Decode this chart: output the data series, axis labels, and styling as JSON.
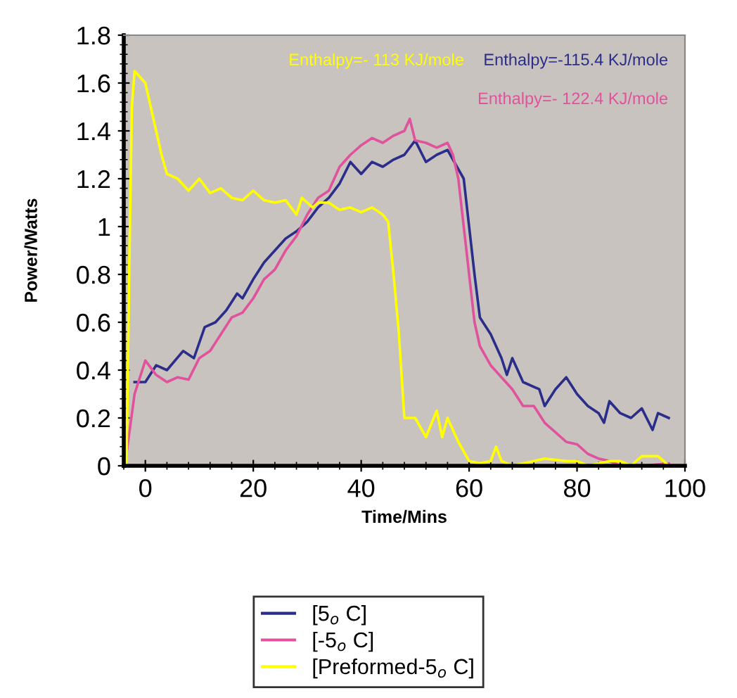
{
  "chart_data": {
    "type": "line",
    "xlabel": "Time/Mins",
    "ylabel": "Power/Watts",
    "xlim": [
      -4,
      100
    ],
    "xticks": [
      0,
      20,
      40,
      60,
      80,
      100
    ],
    "ylim": [
      0,
      1.8
    ],
    "yticks": [
      0,
      0.2,
      0.4,
      0.6,
      0.8,
      {
        "value": 1.0,
        "label": "1"
      },
      1.2,
      1.4,
      1.6,
      1.8
    ],
    "grid": false,
    "legend": "bottom",
    "marker": "none",
    "line_style": "solid",
    "annotations": [
      "Enthalpy=-115.4 KJ/mole",
      "Enthalpy=- 122.4 KJ/mole",
      "Enthalpy=- 113 KJ/mole"
    ],
    "series": [
      {
        "name": "[5$_{o}$ C]",
        "color": "#2b2d8a",
        "x": [
          -2,
          0,
          2,
          4,
          7,
          9,
          11,
          13,
          15,
          17,
          18,
          20,
          22,
          24,
          26,
          28,
          30,
          32,
          34,
          36,
          38,
          40,
          42,
          44,
          46,
          48,
          50,
          52,
          54,
          56,
          57,
          59,
          60,
          61,
          62,
          64,
          66,
          67,
          68,
          70,
          73,
          74,
          76,
          78,
          80,
          82,
          84,
          85,
          86,
          88,
          90,
          92,
          94,
          95,
          97
        ],
        "values": [
          0.35,
          0.35,
          0.42,
          0.4,
          0.48,
          0.45,
          0.58,
          0.6,
          0.65,
          0.72,
          0.7,
          0.78,
          0.85,
          0.9,
          0.95,
          0.98,
          1.02,
          1.08,
          1.12,
          1.18,
          1.27,
          1.22,
          1.27,
          1.25,
          1.28,
          1.3,
          1.36,
          1.27,
          1.3,
          1.32,
          1.28,
          1.2,
          1.0,
          0.8,
          0.62,
          0.55,
          0.45,
          0.38,
          0.45,
          0.35,
          0.32,
          0.25,
          0.32,
          0.37,
          0.3,
          0.25,
          0.22,
          0.18,
          0.27,
          0.22,
          0.2,
          0.24,
          0.15,
          0.22,
          0.2
        ]
      },
      {
        "name": "[-5$_{o}$ C]",
        "color": "#e0529c",
        "x": [
          -3.5,
          -2,
          0,
          2,
          4,
          6,
          8,
          10,
          12,
          14,
          16,
          18,
          20,
          22,
          24,
          26,
          28,
          30,
          32,
          34,
          36,
          38,
          40,
          42,
          44,
          46,
          48,
          49,
          50,
          52,
          54,
          56,
          57,
          58,
          59,
          60,
          61,
          62,
          64,
          66,
          68,
          70,
          72,
          74,
          76,
          78,
          80,
          82,
          84,
          86,
          88,
          92,
          97
        ],
        "values": [
          0.05,
          0.3,
          0.44,
          0.38,
          0.35,
          0.37,
          0.36,
          0.45,
          0.48,
          0.55,
          0.62,
          0.64,
          0.7,
          0.78,
          0.82,
          0.9,
          0.96,
          1.05,
          1.12,
          1.15,
          1.25,
          1.3,
          1.34,
          1.37,
          1.35,
          1.38,
          1.4,
          1.45,
          1.36,
          1.35,
          1.33,
          1.35,
          1.3,
          1.2,
          1.0,
          0.8,
          0.6,
          0.5,
          0.42,
          0.37,
          0.32,
          0.25,
          0.25,
          0.18,
          0.14,
          0.1,
          0.09,
          0.05,
          0.03,
          0.02,
          0.0,
          0.0,
          0.01
        ]
      },
      {
        "name": "[Preformed-5$_{o}$ C]",
        "color": "#ffff00",
        "x": [
          -3.5,
          -3,
          -2.5,
          -2,
          0,
          1,
          2,
          3,
          4,
          6,
          8,
          10,
          12,
          14,
          16,
          18,
          20,
          22,
          24,
          26,
          28,
          29,
          31,
          32,
          34,
          36,
          38,
          40,
          42,
          44,
          45,
          46,
          47,
          48,
          50,
          52,
          54,
          55,
          56,
          58,
          60,
          62,
          64,
          65,
          66,
          68,
          72,
          74,
          78,
          80,
          82,
          86,
          88,
          90,
          92,
          95,
          97
        ],
        "values": [
          0.0,
          0.8,
          1.5,
          1.65,
          1.6,
          1.5,
          1.4,
          1.3,
          1.22,
          1.2,
          1.15,
          1.2,
          1.14,
          1.16,
          1.12,
          1.11,
          1.15,
          1.11,
          1.1,
          1.11,
          1.05,
          1.12,
          1.08,
          1.1,
          1.1,
          1.07,
          1.08,
          1.06,
          1.08,
          1.05,
          1.02,
          0.8,
          0.55,
          0.2,
          0.2,
          0.12,
          0.23,
          0.12,
          0.2,
          0.1,
          0.02,
          0.01,
          0.02,
          0.08,
          0.02,
          0.0,
          0.02,
          0.03,
          0.02,
          0.02,
          0.0,
          0.02,
          0.02,
          0.0,
          0.04,
          0.04,
          0.0
        ]
      }
    ]
  }
}
